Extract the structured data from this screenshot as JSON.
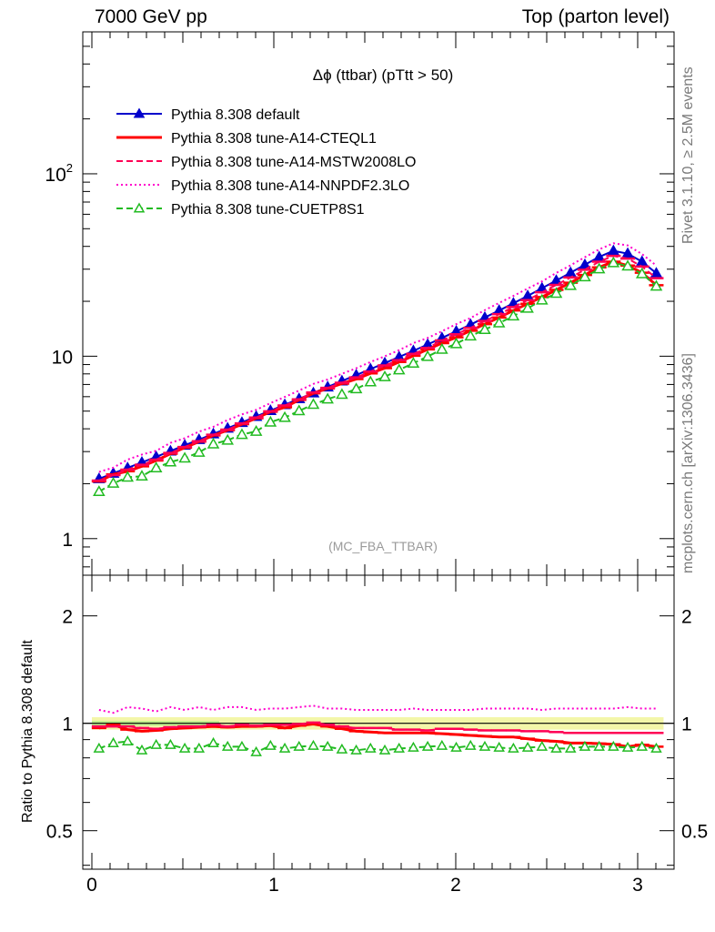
{
  "header": {
    "left": "7000 GeV pp",
    "right": "Top (parton level)"
  },
  "side_labels": {
    "rivet": "Rivet 3.1.10, ≥ 2.5M events",
    "mcplots": "mcplots.cern.ch [arXiv:1306.3436]"
  },
  "chart_data": [
    {
      "type": "line",
      "panel": "main",
      "title": "Δϕ (ttbar) (pTtt > 50)",
      "watermark": "(MC_FBA_TTBAR)",
      "yscale": "log",
      "xlim": [
        -0.05,
        3.2
      ],
      "ylim": [
        0.63,
        600
      ],
      "ytick_labels": {
        "1": "1",
        "10": "10",
        "100": "10²"
      },
      "legend_position": "top-left",
      "x": [
        0.0393,
        0.1178,
        0.1963,
        0.2749,
        0.3534,
        0.432,
        0.5105,
        0.589,
        0.6676,
        0.7461,
        0.8247,
        0.9032,
        0.9817,
        1.0603,
        1.1388,
        1.2174,
        1.2959,
        1.3744,
        1.453,
        1.5315,
        1.6101,
        1.6886,
        1.7671,
        1.8457,
        1.9242,
        2.0028,
        2.0813,
        2.1598,
        2.2384,
        2.3169,
        2.3955,
        2.474,
        2.5525,
        2.6311,
        2.7096,
        2.7882,
        2.8667,
        2.9452,
        3.0238,
        3.1023
      ],
      "series": [
        {
          "name": "Pythia 8.308 default",
          "color": "#0000cc",
          "style": "solid-triangles",
          "values": [
            2.13,
            2.28,
            2.44,
            2.62,
            2.81,
            3.02,
            3.25,
            3.49,
            3.75,
            4.03,
            4.33,
            4.67,
            5.03,
            5.42,
            5.84,
            6.29,
            6.78,
            7.31,
            7.88,
            8.5,
            9.17,
            9.9,
            10.7,
            11.6,
            12.6,
            13.7,
            14.9,
            16.3,
            17.8,
            19.5,
            21.4,
            23.6,
            26.0,
            28.7,
            31.7,
            35.0,
            37.8,
            36.5,
            33.0,
            28.5
          ]
        },
        {
          "name": "Pythia 8.308 tune-A14-CTEQL1",
          "color": "#ff0000",
          "style": "solid",
          "values": [
            2.06,
            2.25,
            2.34,
            2.49,
            2.68,
            2.92,
            3.15,
            3.4,
            3.68,
            3.93,
            4.24,
            4.57,
            4.96,
            5.25,
            5.76,
            6.26,
            6.66,
            7.07,
            7.49,
            8.05,
            8.6,
            9.29,
            10.05,
            10.9,
            11.8,
            12.7,
            13.8,
            15.0,
            16.3,
            17.8,
            19.4,
            21.1,
            23.1,
            25.3,
            27.9,
            30.7,
            33.0,
            31.4,
            28.7,
            24.5
          ]
        },
        {
          "name": "Pythia 8.308 tune-A14-MSTW2008LO",
          "color": "#ff0055",
          "style": "dashed",
          "values": [
            2.08,
            2.23,
            2.39,
            2.54,
            2.71,
            2.95,
            3.18,
            3.42,
            3.71,
            3.96,
            4.28,
            4.61,
            4.99,
            5.37,
            5.8,
            6.32,
            6.71,
            7.16,
            7.65,
            8.24,
            8.9,
            9.51,
            10.3,
            11.1,
            12.2,
            13.2,
            14.3,
            15.6,
            17.0,
            18.6,
            20.3,
            22.4,
            24.6,
            27.0,
            29.8,
            33.0,
            35.5,
            34.3,
            31.0,
            26.8
          ]
        },
        {
          "name": "Pythia 8.308 tune-A14-NNPDF2.3LO",
          "color": "#ff00cc",
          "style": "dotted",
          "values": [
            2.32,
            2.45,
            2.71,
            2.89,
            3.03,
            3.35,
            3.55,
            3.86,
            4.1,
            4.47,
            4.8,
            5.08,
            5.53,
            5.98,
            6.48,
            7.05,
            7.46,
            8.01,
            8.59,
            9.3,
            9.99,
            10.8,
            11.8,
            12.6,
            13.7,
            15.0,
            16.2,
            17.9,
            19.6,
            21.4,
            23.5,
            25.7,
            28.6,
            31.5,
            34.9,
            38.5,
            41.6,
            40.5,
            36.3,
            31.4
          ]
        },
        {
          "name": "Pythia 8.308 tune-CUETP8S1",
          "color": "#22bb22",
          "style": "dashed-open-triangles",
          "values": [
            1.81,
            2.01,
            2.17,
            2.2,
            2.44,
            2.63,
            2.76,
            2.97,
            3.3,
            3.46,
            3.72,
            3.87,
            4.35,
            4.61,
            5.02,
            5.44,
            5.82,
            6.17,
            6.62,
            7.23,
            7.71,
            8.41,
            9.15,
            9.96,
            10.9,
            11.7,
            12.9,
            14.0,
            15.2,
            16.6,
            18.3,
            20.3,
            22.1,
            24.4,
            27.2,
            30.1,
            32.5,
            31.2,
            28.3,
            24.2
          ]
        }
      ]
    },
    {
      "type": "line",
      "panel": "ratio",
      "ylabel": "Ratio to Pythia 8.308 default",
      "yscale": "log",
      "xlim": [
        -0.05,
        3.2
      ],
      "ylim": [
        0.39,
        2.6
      ],
      "x_ticks": [
        0,
        1,
        2,
        3
      ],
      "y_ticks": [
        0.5,
        1,
        2
      ],
      "reference_line": 1,
      "reference_band": [
        0.96,
        1.04
      ],
      "x": [
        0.0393,
        0.1178,
        0.1963,
        0.2749,
        0.3534,
        0.432,
        0.5105,
        0.589,
        0.6676,
        0.7461,
        0.8247,
        0.9032,
        0.9817,
        1.0603,
        1.1388,
        1.2174,
        1.2959,
        1.3744,
        1.453,
        1.5315,
        1.6101,
        1.6886,
        1.7671,
        1.8457,
        1.9242,
        2.0028,
        2.0813,
        2.1598,
        2.2384,
        2.3169,
        2.3955,
        2.474,
        2.5525,
        2.6311,
        2.7096,
        2.7882,
        2.8667,
        2.9452,
        3.0238,
        3.1023
      ],
      "series": [
        {
          "name": "Pythia 8.308 tune-A14-CTEQL1",
          "color": "#ff0000",
          "style": "solid",
          "values": [
            0.97,
            0.99,
            0.96,
            0.95,
            0.955,
            0.965,
            0.97,
            0.975,
            0.98,
            0.975,
            0.98,
            0.98,
            0.985,
            0.97,
            0.985,
            0.995,
            0.98,
            0.965,
            0.95,
            0.945,
            0.94,
            0.94,
            0.94,
            0.94,
            0.935,
            0.93,
            0.925,
            0.92,
            0.915,
            0.915,
            0.905,
            0.895,
            0.89,
            0.88,
            0.88,
            0.877,
            0.873,
            0.86,
            0.87,
            0.86
          ]
        },
        {
          "name": "Pythia 8.308 tune-A14-MSTW2008LO",
          "color": "#ff0055",
          "style": "dashed",
          "values": [
            0.98,
            0.98,
            0.98,
            0.97,
            0.965,
            0.975,
            0.98,
            0.98,
            0.99,
            0.98,
            0.99,
            0.985,
            0.99,
            0.99,
            0.995,
            1.005,
            0.99,
            0.98,
            0.97,
            0.97,
            0.97,
            0.96,
            0.96,
            0.955,
            0.965,
            0.965,
            0.96,
            0.955,
            0.955,
            0.955,
            0.95,
            0.95,
            0.945,
            0.94,
            0.94,
            0.94,
            0.94,
            0.94,
            0.94,
            0.94
          ]
        },
        {
          "name": "Pythia 8.308 tune-A14-NNPDF2.3LO",
          "color": "#ff00cc",
          "style": "dotted",
          "values": [
            1.09,
            1.07,
            1.11,
            1.1,
            1.08,
            1.11,
            1.09,
            1.11,
            1.09,
            1.11,
            1.11,
            1.09,
            1.1,
            1.1,
            1.11,
            1.12,
            1.1,
            1.1,
            1.09,
            1.09,
            1.09,
            1.09,
            1.1,
            1.09,
            1.09,
            1.09,
            1.09,
            1.1,
            1.1,
            1.1,
            1.1,
            1.09,
            1.1,
            1.1,
            1.1,
            1.1,
            1.1,
            1.11,
            1.1,
            1.1
          ]
        },
        {
          "name": "Pythia 8.308 tune-CUETP8S1",
          "color": "#22bb22",
          "style": "dashed-open-triangles",
          "values": [
            0.85,
            0.88,
            0.89,
            0.84,
            0.87,
            0.87,
            0.85,
            0.85,
            0.88,
            0.86,
            0.86,
            0.83,
            0.865,
            0.85,
            0.86,
            0.865,
            0.86,
            0.845,
            0.84,
            0.85,
            0.84,
            0.85,
            0.855,
            0.86,
            0.865,
            0.855,
            0.865,
            0.86,
            0.855,
            0.85,
            0.855,
            0.86,
            0.85,
            0.85,
            0.86,
            0.86,
            0.86,
            0.855,
            0.86,
            0.85
          ]
        }
      ]
    }
  ]
}
